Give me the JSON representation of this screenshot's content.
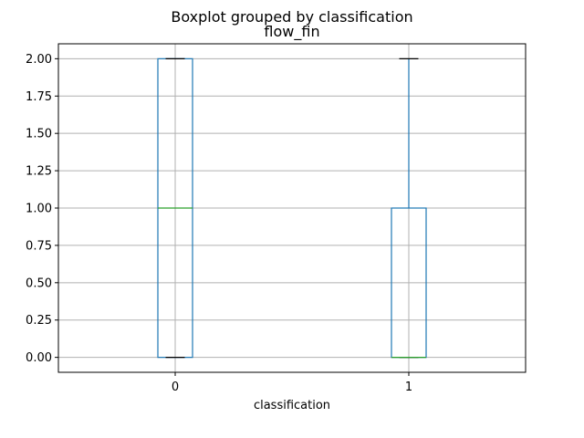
{
  "chart_data": {
    "type": "boxplot",
    "suptitle": "Boxplot grouped by classification",
    "title": "flow_fin",
    "xlabel": "classification",
    "ylabel": "",
    "categories": [
      "0",
      "1"
    ],
    "boxes": [
      {
        "category": "0",
        "whisker_low": 0.0,
        "q1": 0.0,
        "median": 1.0,
        "q3": 2.0,
        "whisker_high": 2.0
      },
      {
        "category": "1",
        "whisker_low": 0.0,
        "q1": 0.0,
        "median": 0.0,
        "q3": 1.0,
        "whisker_high": 2.0
      }
    ],
    "ylim": [
      -0.1,
      2.1
    ],
    "yticks": [
      0.0,
      0.25,
      0.5,
      0.75,
      1.0,
      1.25,
      1.5,
      1.75,
      2.0
    ],
    "ytick_labels": [
      "0.00",
      "0.25",
      "0.50",
      "0.75",
      "1.00",
      "1.25",
      "1.50",
      "1.75",
      "2.00"
    ],
    "grid": true,
    "colors": {
      "box": "#1f77b4",
      "median": "#2ca02c",
      "cap": "#000000",
      "grid": "#b0b0b0"
    }
  }
}
